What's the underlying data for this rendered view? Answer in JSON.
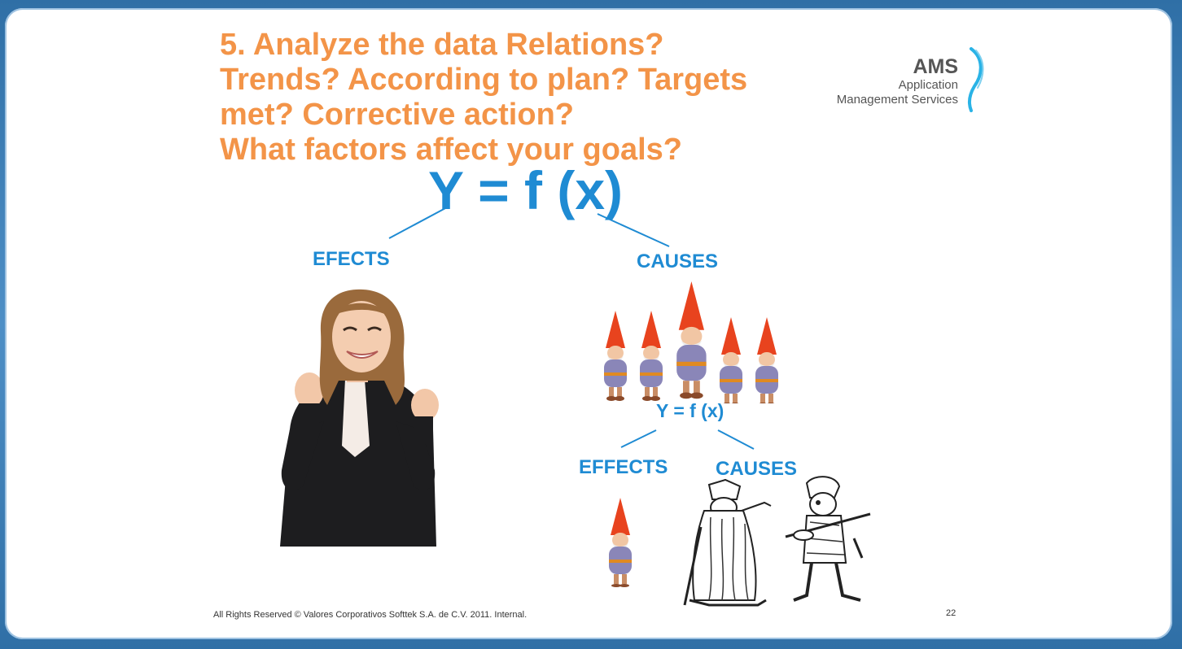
{
  "slide": {
    "title_lines": [
      "5. Analyze the data Relations?",
      "Trends? According to plan? Targets",
      "met? Corrective action?",
      "What factors affect your goals?"
    ],
    "logo": {
      "name": "AMS",
      "line1": "Application",
      "line2": "Management Services"
    },
    "formula_main": "Y = f (x)",
    "effects_label": "EFECTS",
    "causes_label": "CAUSES",
    "formula_sub": "Y = f (x)",
    "effects_label_sub": "EFFECTS",
    "causes_label_sub": "CAUSES",
    "footer": "All Rights Reserved © Valores Corporativos Softtek S.A. de C.V. 2011. Internal.",
    "page_number": "22"
  },
  "colors": {
    "title": "#f39448",
    "accent_blue": "#1f8bd3",
    "gnome_hat": "#e8431e",
    "gnome_body": "#8a86b8"
  },
  "images": {
    "woman": "cheering-businesswoman",
    "gnomes": "five-gnomes",
    "single_gnome": "single-gnome",
    "wizard": "bearded-wizard-drawing",
    "fiddler": "fiddler-drawing"
  }
}
